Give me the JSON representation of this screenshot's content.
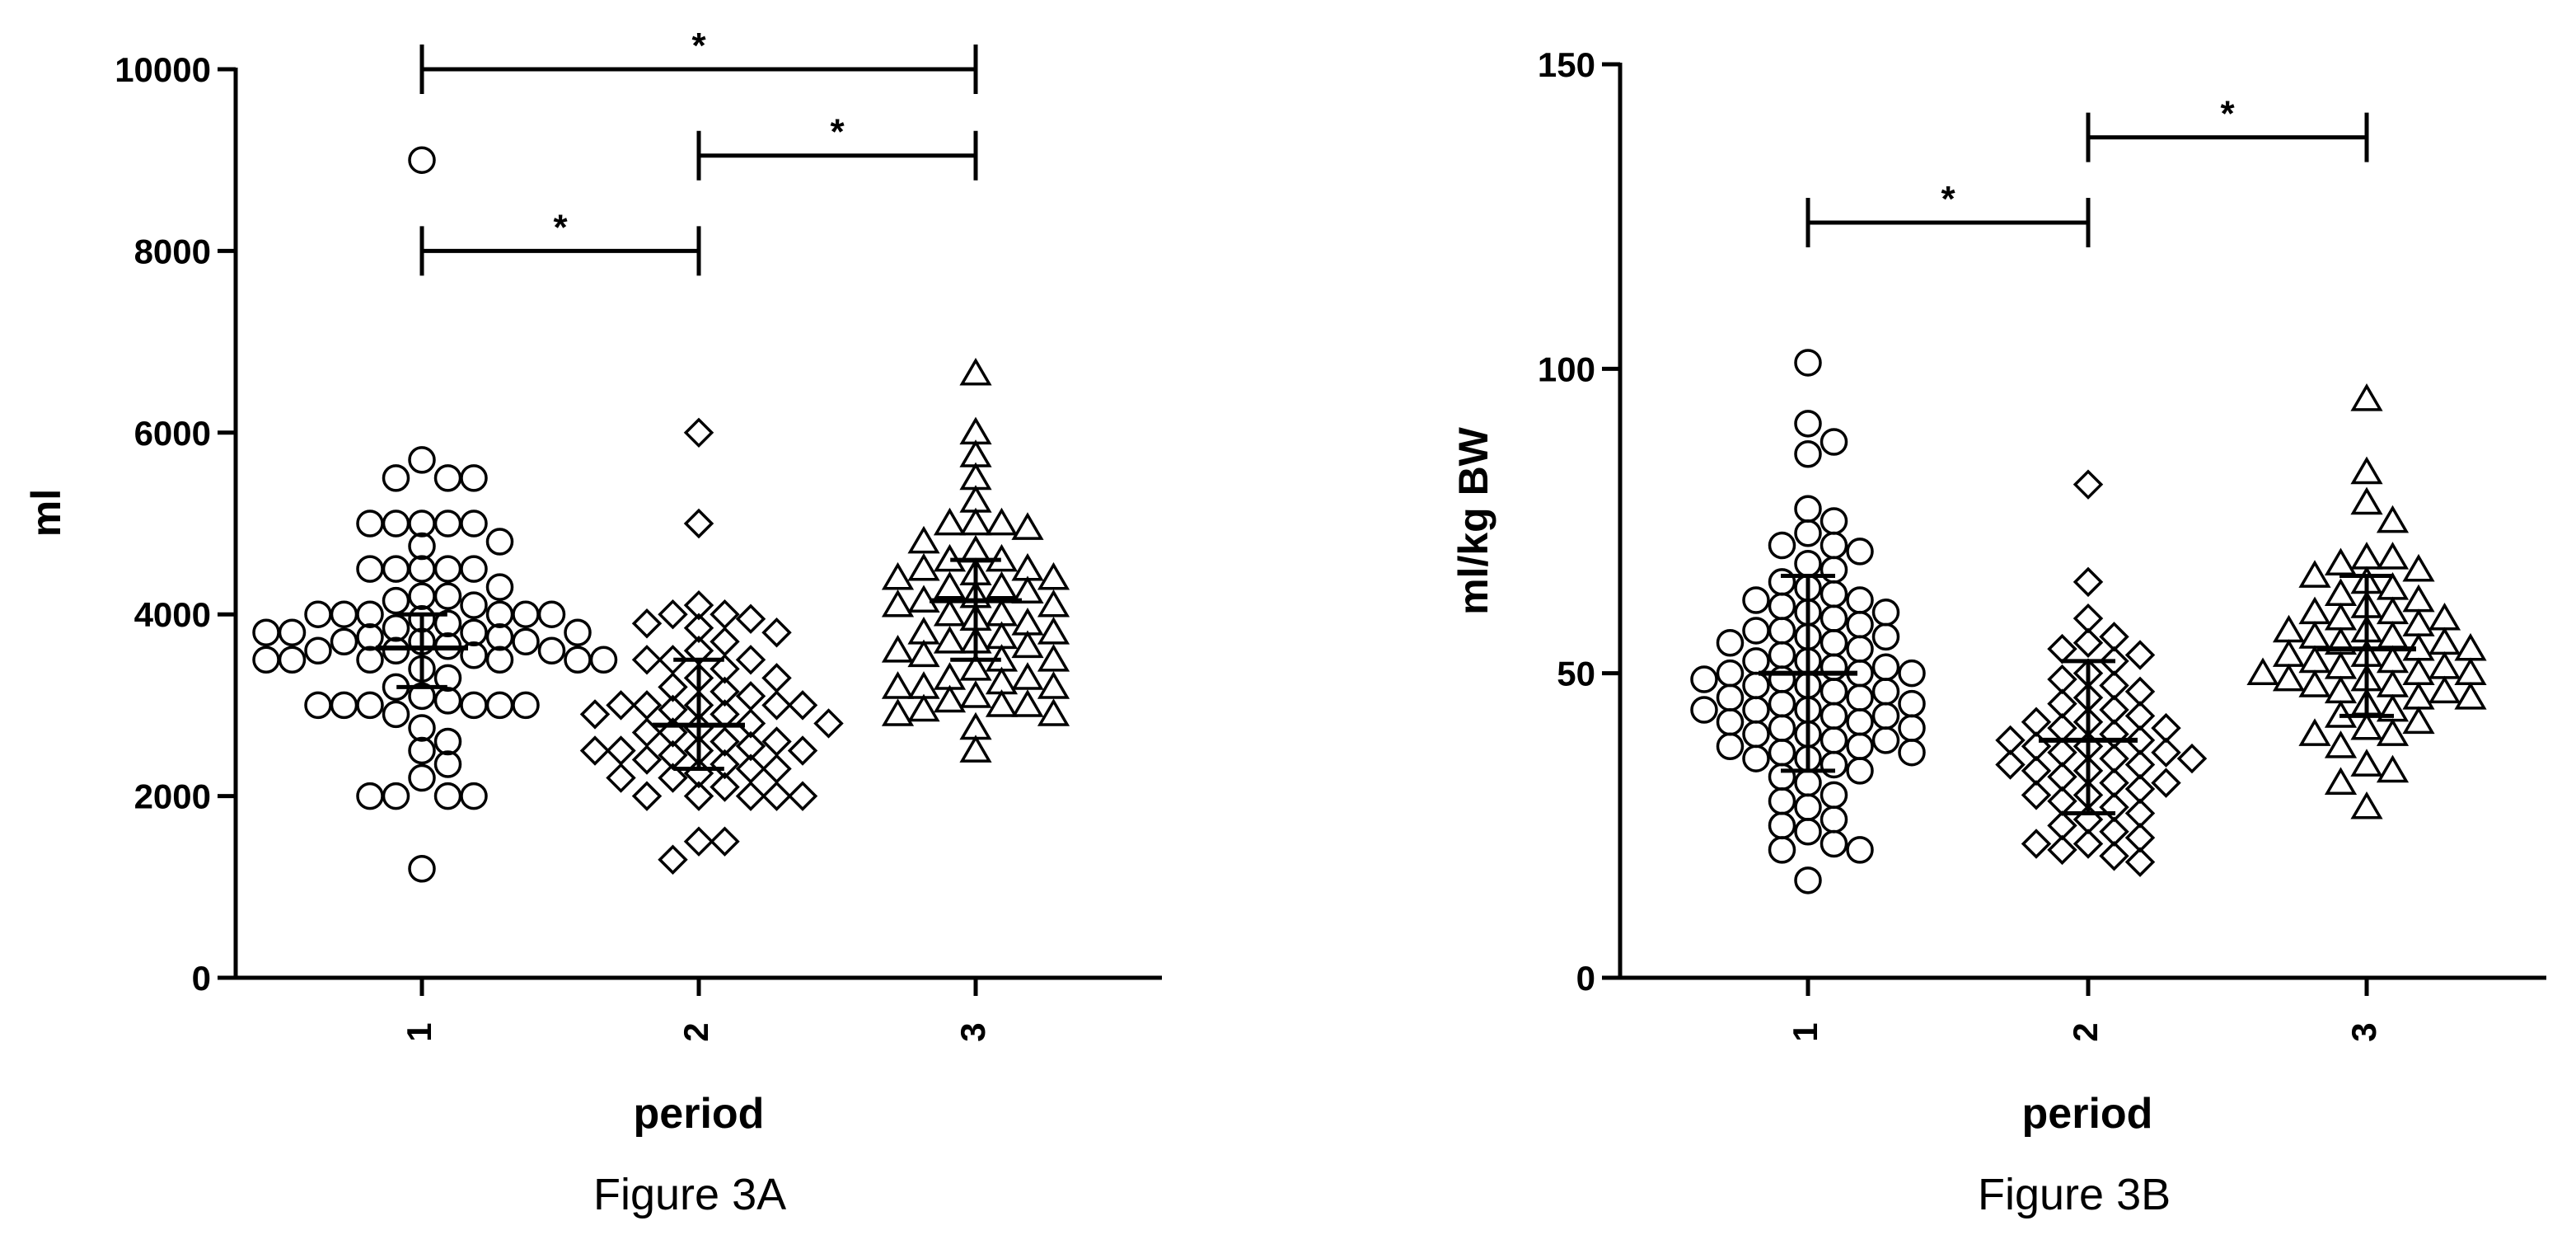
{
  "chart_data": [
    {
      "type": "scatter",
      "panel": "A",
      "caption": "Figure 3A",
      "xlabel": "period",
      "ylabel": "ml",
      "categories": [
        "1",
        "2",
        "3"
      ],
      "ylim": [
        0,
        10000
      ],
      "yticks": [
        0,
        2000,
        4000,
        6000,
        8000,
        10000
      ],
      "grid": false,
      "legend": "none",
      "markers": [
        "circle",
        "diamond",
        "triangle"
      ],
      "groups": [
        {
          "category": "1",
          "marker": "circle",
          "values": [
            9000,
            5700,
            5500,
            5500,
            5500,
            5000,
            5000,
            5000,
            5000,
            5000,
            4800,
            4750,
            4500,
            4500,
            4500,
            4500,
            4500,
            4300,
            4200,
            4200,
            4150,
            4100,
            4000,
            4000,
            4000,
            4000,
            4000,
            4000,
            3950,
            3900,
            3850,
            3800,
            3800,
            3800,
            3800,
            3750,
            3750,
            3700,
            3700,
            3700,
            3650,
            3600,
            3600,
            3600,
            3550,
            3500,
            3500,
            3500,
            3500,
            3500,
            3500,
            3400,
            3300,
            3200,
            3100,
            3050,
            3000,
            3000,
            3000,
            3000,
            3000,
            3000,
            2900,
            2750,
            2600,
            2500,
            2350,
            2200,
            2000,
            2000,
            2000,
            2000,
            1200
          ],
          "mean": 3630,
          "sd_low": 3200,
          "sd_high": 4000
        },
        {
          "category": "2",
          "marker": "diamond",
          "values": [
            6000,
            5000,
            4100,
            4000,
            4000,
            3950,
            3900,
            3850,
            3800,
            3700,
            3600,
            3500,
            3500,
            3500,
            3400,
            3300,
            3300,
            3200,
            3150,
            3100,
            3000,
            3000,
            3000,
            3000,
            3000,
            2950,
            2900,
            2900,
            2800,
            2800,
            2750,
            2700,
            2700,
            2600,
            2600,
            2550,
            2500,
            2500,
            2500,
            2500,
            2450,
            2400,
            2350,
            2300,
            2300,
            2250,
            2200,
            2200,
            2100,
            2000,
            2000,
            2000,
            2000,
            2000,
            1500,
            1500,
            1300
          ],
          "mean": 2780,
          "sd_low": 2300,
          "sd_high": 3500
        },
        {
          "category": "3",
          "marker": "triangle",
          "values": [
            6650,
            6000,
            5750,
            5500,
            5250,
            5000,
            5000,
            5000,
            4950,
            4800,
            4700,
            4600,
            4600,
            4500,
            4500,
            4450,
            4400,
            4400,
            4300,
            4300,
            4250,
            4200,
            4150,
            4100,
            4100,
            4000,
            4000,
            3950,
            3900,
            3800,
            3800,
            3750,
            3700,
            3700,
            3650,
            3600,
            3550,
            3500,
            3500,
            3400,
            3300,
            3300,
            3250,
            3200,
            3200,
            3200,
            3100,
            3050,
            3000,
            3000,
            2950,
            2900,
            2900,
            2750,
            2500
          ],
          "mean": 4150,
          "sd_low": 3500,
          "sd_high": 4600
        }
      ],
      "significance": [
        {
          "from": "1",
          "to": "3",
          "y": 10000,
          "label": "*"
        },
        {
          "from": "2",
          "to": "3",
          "y": 9050,
          "label": "*"
        },
        {
          "from": "1",
          "to": "2",
          "y": 8000,
          "label": "*"
        }
      ]
    },
    {
      "type": "scatter",
      "panel": "B",
      "caption": "Figure 3B",
      "xlabel": "period",
      "ylabel": "ml/kg BW",
      "categories": [
        "1",
        "2",
        "3"
      ],
      "ylim": [
        0,
        150
      ],
      "yticks": [
        0,
        50,
        100,
        150
      ],
      "grid": false,
      "legend": "none",
      "markers": [
        "circle",
        "diamond",
        "triangle"
      ],
      "groups": [
        {
          "category": "1",
          "marker": "circle",
          "values": [
            101,
            91,
            88,
            86,
            77,
            75,
            73,
            71,
            71,
            70,
            68,
            67,
            65,
            64,
            63,
            62,
            62,
            61,
            60,
            60,
            59,
            58,
            57,
            57,
            56,
            56,
            55,
            55,
            54,
            53,
            52,
            52,
            51,
            51,
            50,
            50,
            50,
            49,
            49,
            48,
            48,
            47,
            47,
            46,
            46,
            45,
            45,
            44,
            44,
            44,
            43,
            43,
            42,
            42,
            41,
            41,
            40,
            40,
            39,
            39,
            38,
            38,
            37,
            37,
            36,
            36,
            35,
            34,
            33,
            32,
            30,
            29,
            28,
            26,
            25,
            24,
            22,
            21,
            21,
            16
          ],
          "mean": 50,
          "sd_low": 34,
          "sd_high": 66
        },
        {
          "category": "2",
          "marker": "diamond",
          "values": [
            81,
            65,
            59,
            56,
            55,
            54,
            53,
            52,
            50,
            49,
            48,
            47,
            46,
            45,
            44,
            43,
            42,
            42,
            41,
            41,
            40,
            39,
            39,
            38,
            38,
            37,
            37,
            36,
            36,
            35,
            35,
            34,
            34,
            33,
            32,
            32,
            31,
            30,
            30,
            29,
            28,
            27,
            26,
            25,
            24,
            23,
            22,
            22,
            21,
            20,
            19
          ],
          "mean": 39,
          "sd_low": 27,
          "sd_high": 52
        },
        {
          "category": "3",
          "marker": "triangle",
          "values": [
            95,
            83,
            78,
            75,
            69,
            69,
            68,
            67,
            66,
            65,
            64,
            63,
            62,
            61,
            60,
            60,
            59,
            59,
            58,
            57,
            57,
            56,
            56,
            55,
            55,
            54,
            54,
            53,
            53,
            52,
            52,
            51,
            51,
            50,
            50,
            50,
            49,
            49,
            48,
            48,
            47,
            47,
            46,
            46,
            45,
            44,
            43,
            42,
            41,
            40,
            40,
            38,
            35,
            34,
            32,
            28
          ],
          "mean": 54,
          "sd_low": 43,
          "sd_high": 66
        }
      ],
      "significance": [
        {
          "from": "1",
          "to": "2",
          "y": 124,
          "label": "*"
        },
        {
          "from": "2",
          "to": "3",
          "y": 138,
          "label": "*"
        }
      ]
    }
  ]
}
